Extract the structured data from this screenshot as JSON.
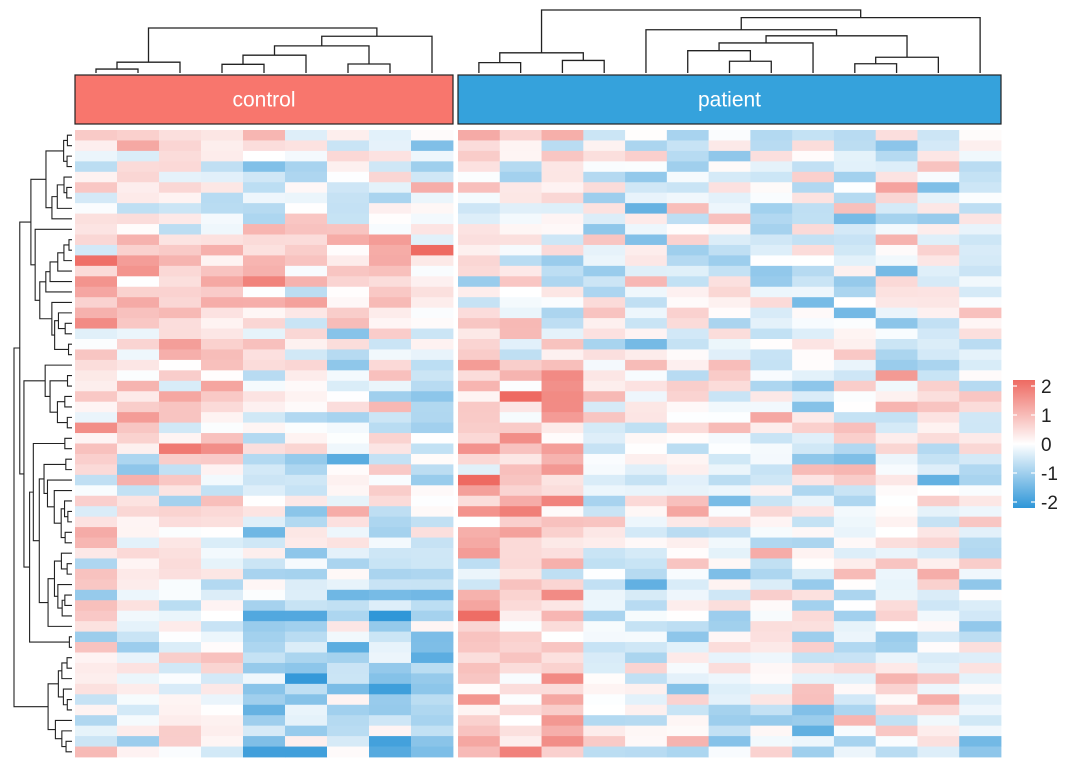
{
  "chart_data": {
    "type": "heatmap",
    "title": "",
    "xlabel": "",
    "ylabel": "",
    "groups": [
      {
        "label": "control",
        "color": "#F8766D",
        "columns": 9
      },
      {
        "label": "patient",
        "color": "#35A2DC",
        "columns": 13
      }
    ],
    "rows": 60,
    "color_scale": {
      "min": -2,
      "max": 2,
      "low_color": "#2E96D8",
      "mid_color": "#FFFFFF",
      "high_color": "#EE6A62",
      "ticks": [
        2,
        1,
        0,
        -1,
        -2
      ]
    },
    "row_dendrogram": true,
    "column_dendrogram": true,
    "legend_position": "right",
    "grid": false
  }
}
